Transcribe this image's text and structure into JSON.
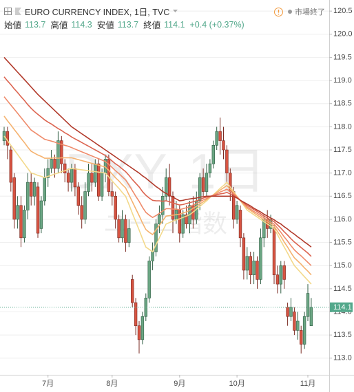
{
  "chart_data": {
    "type": "candlestick",
    "title": "EURO CURRENCY INDEX, 1日, TVC",
    "legend_items": [
      {
        "label": "始値",
        "value": 113.7
      },
      {
        "label": "高値",
        "value": 114.3
      },
      {
        "label": "安値",
        "value": 113.7
      },
      {
        "label": "終値",
        "value": 114.1
      }
    ],
    "change": "+0.4 (+0.37%)",
    "status": "市場終了",
    "watermark": "DXY, 1日",
    "watermark_sub": "ユーロ指数",
    "last_price": 114.1,
    "up_color": "#6ba583",
    "down_color": "#d75442",
    "last_price_color": "#53a88b",
    "categories": [
      null,
      null,
      null,
      null,
      null,
      null,
      null,
      null,
      null,
      null,
      null,
      null,
      null,
      "7月",
      null,
      null,
      null,
      null,
      null,
      null,
      null,
      null,
      null,
      null,
      null,
      null,
      null,
      null,
      null,
      null,
      null,
      null,
      "8月",
      null,
      null,
      null,
      null,
      null,
      null,
      null,
      null,
      null,
      null,
      null,
      null,
      null,
      null,
      null,
      null,
      null,
      null,
      null,
      "9月",
      null,
      null,
      null,
      null,
      null,
      null,
      null,
      null,
      null,
      null,
      null,
      null,
      null,
      null,
      null,
      null,
      "10月",
      null,
      null,
      null,
      null,
      null,
      null,
      null,
      null,
      null,
      null,
      null,
      null,
      null,
      null,
      null,
      null,
      null,
      null,
      null,
      null,
      "11月",
      null
    ],
    "open": [
      117.7,
      117.9,
      117.5,
      116.9,
      116.0,
      116.3,
      115.6,
      116.2,
      116.8,
      116.5,
      116.7,
      115.8,
      116.4,
      116.9,
      117.1,
      117.3,
      117.1,
      117.7,
      117.2,
      117.0,
      116.8,
      117.1,
      116.7,
      116.3,
      116.0,
      116.6,
      117.0,
      116.8,
      117.2,
      116.5,
      117.0,
      117.3,
      116.6,
      116.5,
      116.0,
      115.6,
      116.0,
      115.5,
      114.7,
      114.2,
      113.7,
      113.4,
      113.9,
      114.3,
      115.1,
      115.3,
      115.9,
      116.1,
      116.5,
      116.9,
      116.5,
      116.0,
      116.2,
      115.7,
      116.1,
      115.9,
      116.3,
      116.0,
      116.4,
      116.9,
      116.6,
      117.0,
      117.2,
      117.6,
      117.9,
      117.7,
      117.5,
      117.0,
      116.6,
      116.0,
      116.2,
      115.6,
      114.9,
      115.2,
      114.8,
      115.1,
      114.7,
      115.6,
      116.0,
      115.8,
      115.8,
      114.8,
      114.6,
      115.0,
      114.1,
      113.9,
      114.0,
      113.6,
      113.6,
      113.3,
      113.9,
      113.7
    ],
    "high": [
      118.0,
      118.0,
      117.6,
      117.0,
      116.5,
      116.5,
      116.3,
      117.0,
      117.0,
      116.9,
      116.8,
      116.5,
      117.1,
      117.3,
      117.5,
      117.4,
      117.9,
      117.8,
      117.3,
      117.1,
      117.2,
      117.2,
      116.8,
      116.5,
      116.8,
      117.2,
      117.2,
      117.3,
      117.3,
      117.1,
      117.4,
      117.4,
      116.8,
      116.6,
      116.1,
      116.2,
      116.1,
      116.0,
      114.8,
      114.3,
      113.8,
      114.0,
      114.4,
      115.2,
      115.5,
      116.0,
      116.3,
      116.7,
      117.1,
      117.2,
      116.6,
      116.4,
      116.3,
      116.2,
      116.3,
      116.4,
      116.5,
      116.6,
      117.0,
      117.1,
      117.2,
      117.3,
      117.7,
      118.0,
      118.2,
      118.0,
      117.6,
      117.1,
      116.7,
      116.4,
      116.3,
      115.7,
      115.4,
      115.3,
      115.3,
      115.2,
      115.8,
      116.1,
      116.2,
      116.1,
      115.9,
      115.0,
      115.1,
      115.1,
      114.2,
      114.3,
      114.1,
      114.0,
      113.7,
      114.0,
      114.6,
      114.3
    ],
    "low": [
      117.6,
      117.3,
      116.6,
      115.8,
      115.8,
      115.4,
      115.5,
      116.0,
      116.3,
      116.3,
      115.6,
      115.7,
      116.3,
      116.7,
      117.0,
      116.9,
      117.0,
      117.0,
      116.8,
      116.6,
      116.6,
      116.5,
      116.1,
      115.8,
      115.9,
      116.5,
      116.6,
      116.7,
      116.4,
      116.4,
      116.8,
      116.5,
      116.3,
      115.8,
      115.5,
      115.5,
      115.3,
      115.4,
      114.1,
      113.5,
      113.1,
      113.3,
      113.8,
      114.2,
      114.9,
      115.2,
      115.7,
      115.9,
      116.4,
      116.3,
      115.7,
      115.9,
      115.5,
      115.6,
      115.8,
      115.7,
      115.8,
      115.9,
      116.2,
      116.5,
      116.5,
      116.9,
      117.1,
      117.5,
      117.4,
      117.3,
      116.8,
      116.4,
      115.8,
      115.9,
      115.4,
      114.7,
      114.7,
      114.6,
      114.6,
      114.5,
      114.6,
      115.4,
      115.6,
      115.7,
      114.6,
      114.4,
      114.4,
      114.5,
      113.7,
      113.8,
      113.5,
      113.4,
      113.1,
      113.2,
      113.8,
      113.7
    ],
    "close": [
      117.9,
      117.6,
      116.8,
      116.0,
      116.3,
      115.6,
      116.2,
      116.8,
      116.5,
      116.8,
      115.7,
      116.4,
      116.9,
      117.1,
      117.3,
      117.1,
      117.7,
      117.2,
      117.0,
      116.8,
      117.1,
      116.7,
      116.3,
      116.0,
      116.6,
      117.0,
      116.8,
      117.2,
      116.5,
      117.0,
      117.3,
      116.6,
      116.5,
      116.0,
      115.6,
      116.0,
      115.5,
      115.8,
      114.2,
      113.7,
      113.4,
      113.9,
      114.3,
      115.1,
      115.3,
      115.9,
      116.1,
      116.5,
      116.9,
      116.5,
      116.0,
      116.2,
      115.7,
      116.1,
      115.9,
      116.3,
      116.0,
      116.4,
      116.9,
      116.6,
      117.0,
      117.2,
      117.6,
      117.9,
      117.7,
      117.5,
      117.0,
      116.6,
      116.0,
      116.3,
      115.6,
      114.9,
      115.2,
      114.8,
      115.1,
      114.7,
      115.6,
      116.0,
      115.8,
      116.0,
      114.8,
      114.6,
      115.0,
      114.7,
      113.9,
      114.1,
      113.6,
      113.8,
      113.3,
      113.9,
      114.4,
      114.1
    ],
    "series": [
      {
        "color": "#f3d98b",
        "values": [
          117.8,
          117.7,
          117.6,
          117.5,
          117.4,
          117.3,
          117.2,
          117.1,
          117.0,
          116.98,
          116.95,
          116.93,
          116.9,
          116.93,
          116.95,
          116.98,
          117.0,
          117.03,
          117.05,
          117.08,
          117.1,
          117.09,
          117.08,
          117.07,
          117.06,
          117.05,
          117.04,
          117.03,
          117.02,
          117.01,
          117.0,
          116.92,
          116.83,
          116.75,
          116.67,
          116.58,
          116.5,
          116.32,
          116.13,
          115.95,
          115.77,
          115.58,
          115.4,
          115.35,
          115.3,
          115.45,
          115.6,
          115.75,
          115.9,
          115.93,
          115.96,
          115.99,
          116.01,
          116.04,
          116.07,
          116.1,
          116.16,
          116.22,
          116.28,
          116.34,
          116.4,
          116.47,
          116.53,
          116.6,
          116.67,
          116.73,
          116.8,
          116.7,
          116.6,
          116.5,
          116.4,
          116.3,
          116.2,
          116.15,
          116.1,
          116.05,
          116.0,
          115.95,
          115.9,
          115.85,
          115.8,
          115.67,
          115.53,
          115.4,
          115.27,
          115.13,
          115.0,
          114.92,
          114.84,
          114.76,
          114.68,
          114.6
        ]
      },
      {
        "color": "#f5b26f",
        "values": [
          118.23,
          118.13,
          118.04,
          117.94,
          117.85,
          117.75,
          117.66,
          117.56,
          117.47,
          117.43,
          117.39,
          117.36,
          117.32,
          117.32,
          117.32,
          117.33,
          117.32,
          117.33,
          117.33,
          117.33,
          117.33,
          117.31,
          117.29,
          117.27,
          117.25,
          117.23,
          117.21,
          117.19,
          117.17,
          117.15,
          117.13,
          117.06,
          116.98,
          116.9,
          116.83,
          116.75,
          116.68,
          116.53,
          116.38,
          116.23,
          116.08,
          115.92,
          115.78,
          115.72,
          115.67,
          115.77,
          115.87,
          115.97,
          116.07,
          116.08,
          116.09,
          116.1,
          116.11,
          116.14,
          116.16,
          116.19,
          116.24,
          116.28,
          116.33,
          116.38,
          116.43,
          116.48,
          116.53,
          116.58,
          116.63,
          116.68,
          116.73,
          116.65,
          116.58,
          116.49,
          116.41,
          116.32,
          116.24,
          116.19,
          116.14,
          116.09,
          116.04,
          115.99,
          115.95,
          115.9,
          115.85,
          115.74,
          115.63,
          115.51,
          115.4,
          115.28,
          115.17,
          115.1,
          115.03,
          114.95,
          114.88,
          114.8
        ]
      },
      {
        "color": "#ef8b6b",
        "values": [
          118.65,
          118.56,
          118.47,
          118.38,
          118.29,
          118.2,
          118.11,
          118.02,
          117.93,
          117.88,
          117.83,
          117.78,
          117.73,
          117.71,
          117.69,
          117.67,
          117.64,
          117.62,
          117.6,
          117.58,
          117.55,
          117.52,
          117.49,
          117.46,
          117.43,
          117.4,
          117.37,
          117.34,
          117.31,
          117.28,
          117.25,
          117.19,
          117.12,
          117.05,
          116.99,
          116.92,
          116.85,
          116.74,
          116.62,
          116.5,
          116.39,
          116.26,
          116.15,
          116.09,
          116.04,
          116.08,
          116.13,
          116.18,
          116.23,
          116.23,
          116.22,
          116.22,
          116.21,
          116.23,
          116.25,
          116.27,
          116.31,
          116.34,
          116.38,
          116.42,
          116.45,
          116.49,
          116.52,
          116.55,
          116.59,
          116.62,
          116.65,
          116.6,
          116.55,
          116.48,
          116.41,
          116.34,
          116.27,
          116.22,
          116.17,
          116.13,
          116.08,
          116.03,
          115.99,
          115.94,
          115.9,
          115.81,
          115.72,
          115.62,
          115.53,
          115.43,
          115.34,
          115.27,
          115.21,
          115.14,
          115.07,
          115.0
        ]
      },
      {
        "color": "#dc6450",
        "values": [
          119.08,
          118.99,
          118.91,
          118.82,
          118.74,
          118.65,
          118.57,
          118.48,
          118.4,
          118.33,
          118.27,
          118.21,
          118.15,
          118.1,
          118.06,
          118.01,
          117.96,
          117.92,
          117.87,
          117.83,
          117.78,
          117.74,
          117.7,
          117.66,
          117.62,
          117.58,
          117.54,
          117.5,
          117.46,
          117.42,
          117.38,
          117.32,
          117.26,
          117.2,
          117.15,
          117.09,
          117.03,
          116.95,
          116.86,
          116.78,
          116.7,
          116.6,
          116.52,
          116.46,
          116.41,
          116.4,
          116.4,
          116.39,
          116.4,
          116.38,
          116.35,
          116.33,
          116.31,
          116.32,
          116.34,
          116.36,
          116.38,
          116.4,
          116.43,
          116.46,
          116.48,
          116.5,
          116.51,
          116.53,
          116.55,
          116.56,
          116.58,
          116.55,
          116.53,
          116.47,
          116.41,
          116.36,
          116.3,
          116.26,
          116.21,
          116.17,
          116.12,
          116.07,
          116.03,
          115.99,
          115.95,
          115.88,
          115.81,
          115.73,
          115.66,
          115.58,
          115.51,
          115.45,
          115.39,
          115.33,
          115.27,
          115.2
        ]
      },
      {
        "color": "#b23b2c",
        "values": [
          119.5,
          119.42,
          119.34,
          119.26,
          119.18,
          119.1,
          119.02,
          118.94,
          118.86,
          118.78,
          118.7,
          118.63,
          118.56,
          118.49,
          118.42,
          118.35,
          118.28,
          118.21,
          118.14,
          118.07,
          118.0,
          117.95,
          117.9,
          117.85,
          117.8,
          117.75,
          117.7,
          117.65,
          117.6,
          117.55,
          117.5,
          117.45,
          117.4,
          117.35,
          117.3,
          117.25,
          117.2,
          117.15,
          117.1,
          117.05,
          117.0,
          116.94,
          116.89,
          116.83,
          116.77,
          116.71,
          116.66,
          116.6,
          116.56,
          116.52,
          116.48,
          116.44,
          116.4,
          116.41,
          116.43,
          116.44,
          116.45,
          116.46,
          116.48,
          116.49,
          116.5,
          116.5,
          116.5,
          116.5,
          116.5,
          116.5,
          116.5,
          116.5,
          116.5,
          116.46,
          116.41,
          116.37,
          116.33,
          116.29,
          116.24,
          116.2,
          116.16,
          116.11,
          116.07,
          116.03,
          115.99,
          115.94,
          115.9,
          115.84,
          115.79,
          115.73,
          115.68,
          115.62,
          115.57,
          115.51,
          115.46,
          115.4
        ]
      }
    ],
    "ylim": [
      112.64,
      120.74
    ],
    "yticks": [
      {
        "value": 113,
        "label": "113.0"
      },
      113.5,
      {
        "value": 114,
        "label": "114.0"
      },
      114.5,
      {
        "value": 115,
        "label": "115.0"
      },
      115.5,
      {
        "value": 116,
        "label": "116.0"
      },
      116.5,
      {
        "value": 117,
        "label": "117.0"
      },
      117.5,
      {
        "value": 118,
        "label": "118.0"
      },
      118.5,
      {
        "value": 119,
        "label": "119.0"
      },
      119.5,
      {
        "value": 120,
        "label": "120.0"
      },
      120.5
    ],
    "grid": true
  }
}
